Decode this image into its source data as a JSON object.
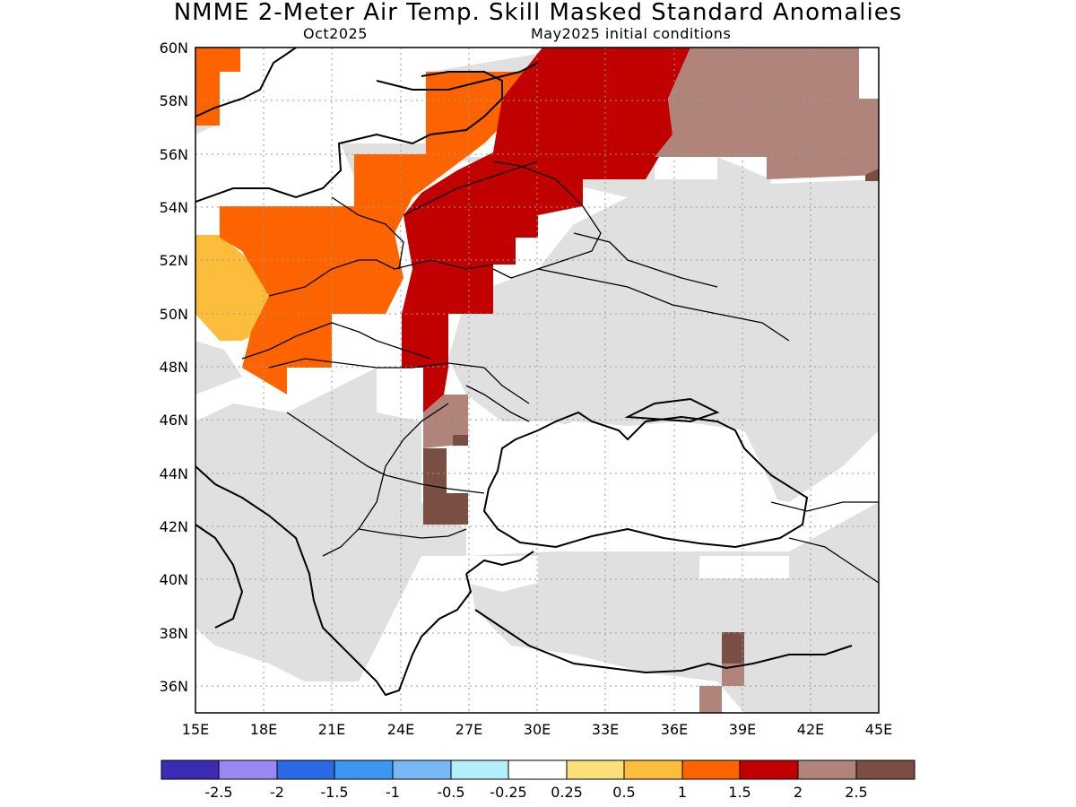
{
  "title": "NMME 2-Meter Air Temp. Skill Masked Standard Anomalies",
  "subtitle_left": "Oct2025",
  "subtitle_right": "May2025 initial conditions",
  "y_ticks": [
    "60N",
    "58N",
    "56N",
    "54N",
    "52N",
    "50N",
    "48N",
    "46N",
    "44N",
    "42N",
    "40N",
    "38N",
    "36N"
  ],
  "x_ticks": [
    "15E",
    "18E",
    "21E",
    "24E",
    "27E",
    "30E",
    "33E",
    "36E",
    "39E",
    "42E",
    "45E"
  ],
  "colorbar": {
    "colors": [
      "#3c2bb4",
      "#9b87f2",
      "#2a6ae6",
      "#3c97f0",
      "#78b8f5",
      "#b4eef8",
      "#ffffff",
      "#fbe07a",
      "#fdbd3c",
      "#fd6400",
      "#c10000",
      "#b0847a",
      "#7a4e42"
    ],
    "labels": [
      "-2.5",
      "-2",
      "-1.5",
      "-1",
      "-0.5",
      "-0.25",
      "0.25",
      "0.5",
      "1",
      "1.5",
      "2",
      "2.5"
    ]
  },
  "map": {
    "lon_range": [
      15,
      45
    ],
    "lat_range": [
      35,
      60
    ],
    "colors": {
      "gray": "#e0e0e0",
      "yellow": "#fdbd3c",
      "orange": "#fd6400",
      "red": "#c10000",
      "pink": "#b0847a",
      "brown": "#7a4e42"
    }
  }
}
